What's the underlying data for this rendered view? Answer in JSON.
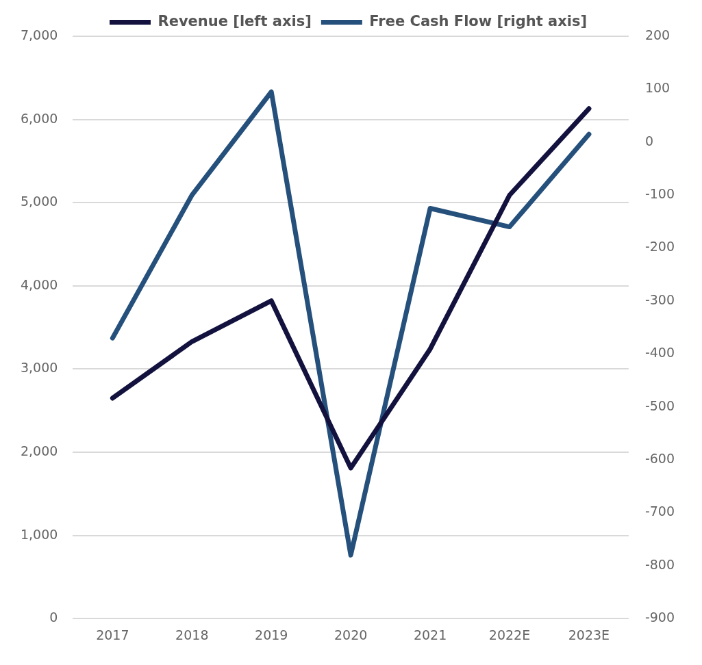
{
  "chart_data": {
    "type": "line",
    "categories": [
      "2017",
      "2018",
      "2019",
      "2020",
      "2021",
      "2022E",
      "2023E"
    ],
    "series": [
      {
        "name": "Revenue [left axis]",
        "color": "#13123f",
        "values": [
          2650,
          3330,
          3820,
          1810,
          3240,
          5090,
          6130
        ]
      },
      {
        "name": "Free Cash Flow [right axis]",
        "color": "#25507c",
        "axis": "y2",
        "values": [
          -370,
          -100,
          95,
          -780,
          -125,
          -160,
          15
        ]
      }
    ],
    "ylim": [
      0,
      7000
    ],
    "yticks": [
      {
        "value": 0,
        "label": "0"
      },
      {
        "value": 1000,
        "label": "1,000"
      },
      {
        "value": 2000,
        "label": "2,000"
      },
      {
        "value": 3000,
        "label": "3,000"
      },
      {
        "value": 4000,
        "label": "4,000"
      },
      {
        "value": 5000,
        "label": "5,000"
      },
      {
        "value": 6000,
        "label": "6,000"
      },
      {
        "value": 7000,
        "label": "7,000"
      }
    ],
    "y2lim": [
      -900,
      200
    ],
    "y2ticks": [
      -900,
      -800,
      -700,
      -600,
      -500,
      -400,
      -300,
      -200,
      -100,
      0,
      100,
      200
    ],
    "grid": "y",
    "legend": "top",
    "marker": "none",
    "line_style": "solid"
  }
}
